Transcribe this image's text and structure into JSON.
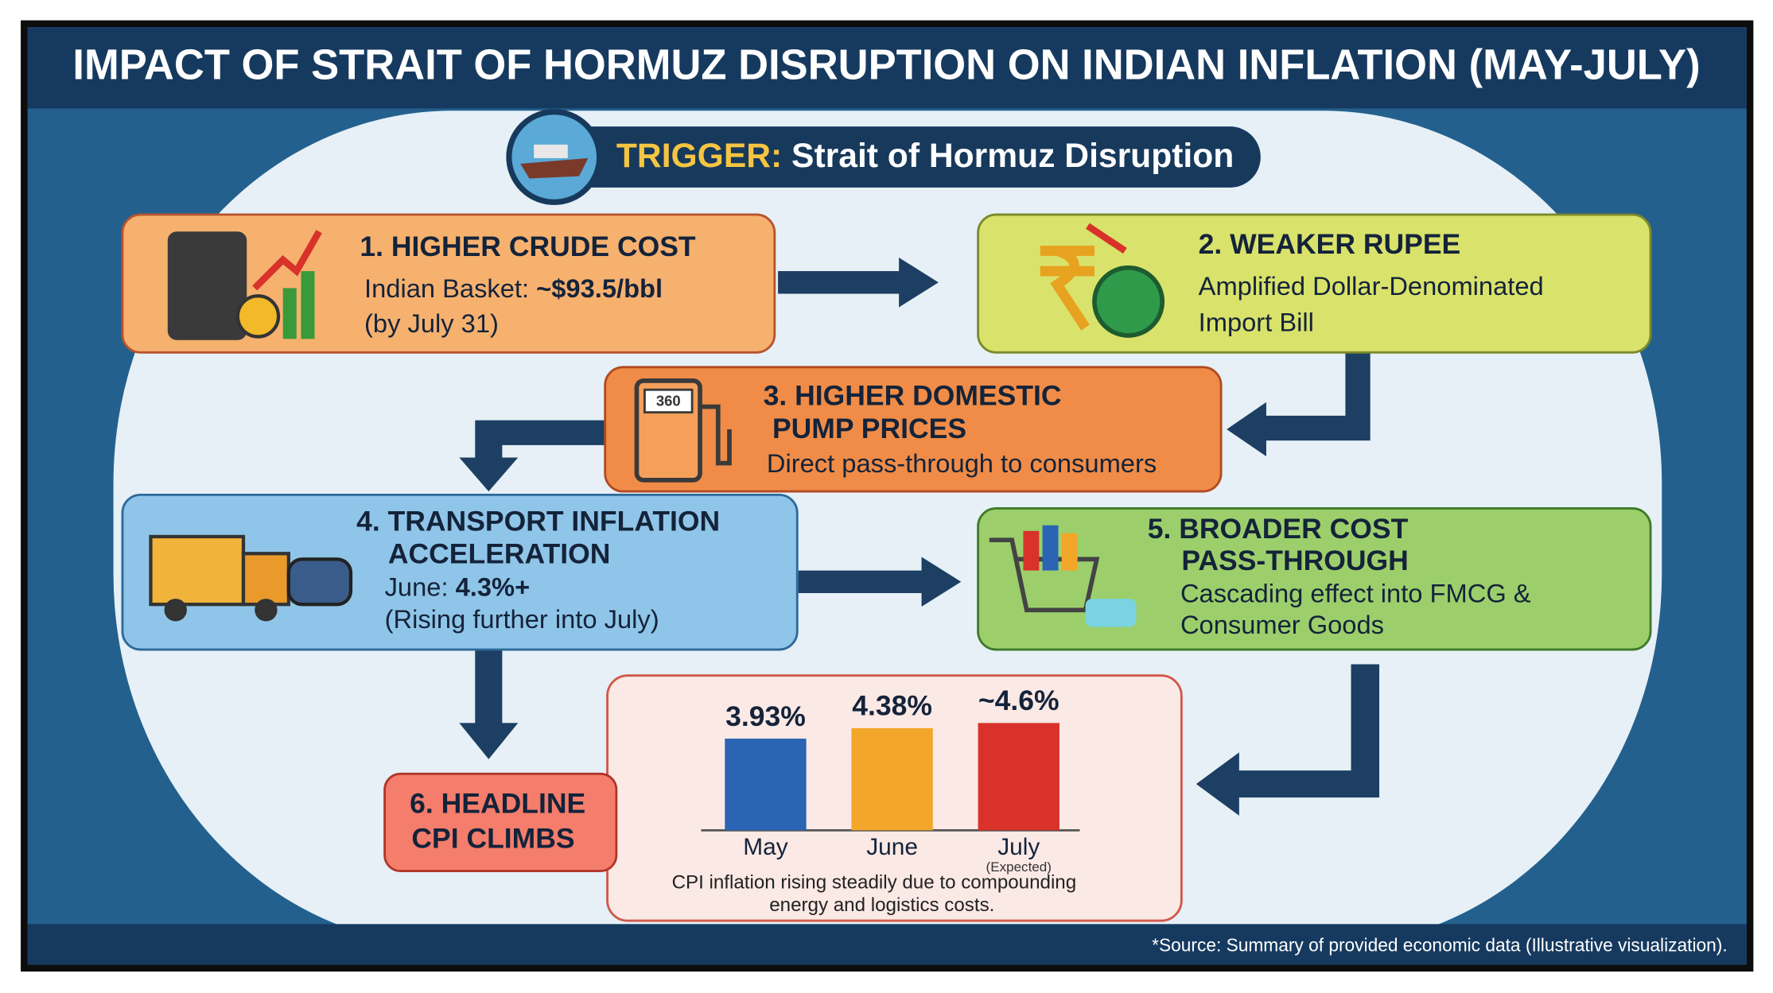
{
  "title": "IMPACT OF STRAIT OF HORMUZ DISRUPTION ON INDIAN INFLATION (MAY-JULY)",
  "trigger": {
    "label": "TRIGGER:",
    "text": "Strait of Hormuz Disruption"
  },
  "steps": [
    {
      "title": [
        "1. HIGHER CRUDE COST"
      ],
      "body": [
        [
          "Indian Basket: ",
          "~$93.5/bbl"
        ],
        [
          "(by July 31)"
        ]
      ]
    },
    {
      "title": [
        "2. WEAKER RUPEE"
      ],
      "body": [
        [
          "Amplified Dollar-Denominated"
        ],
        [
          "Import Bill"
        ]
      ]
    },
    {
      "title": [
        "3. HIGHER DOMESTIC",
        "PUMP PRICES"
      ],
      "body": [
        [
          "Direct pass-through to consumers"
        ]
      ],
      "icon_text": "360"
    },
    {
      "title": [
        "4. TRANSPORT INFLATION",
        "ACCELERATION"
      ],
      "body": [
        [
          "June: ",
          "4.3%+"
        ],
        [
          "(Rising further into July)"
        ]
      ]
    },
    {
      "title": [
        "5. BROADER COST",
        "PASS-THROUGH"
      ],
      "body": [
        [
          "Cascading effect into FMCG &"
        ],
        [
          "Consumer Goods"
        ]
      ]
    },
    {
      "title": [
        "6. HEADLINE",
        "CPI CLIMBS"
      ],
      "body": []
    }
  ],
  "chart_data": {
    "type": "bar",
    "categories": [
      "May",
      "June",
      "July"
    ],
    "notes": [
      null,
      null,
      "(Expected)"
    ],
    "values": [
      3.93,
      4.38,
      4.6
    ],
    "value_labels": [
      "3.93%",
      "4.38%",
      "~4.6%"
    ],
    "colors": [
      "#2a64b3",
      "#f2a62a",
      "#d8322a"
    ],
    "caption": [
      "CPI inflation rising steadily due to compounding",
      "energy and logistics costs."
    ]
  },
  "footnote": "*Source: Summary of provided economic data (Illustrative visualization)."
}
